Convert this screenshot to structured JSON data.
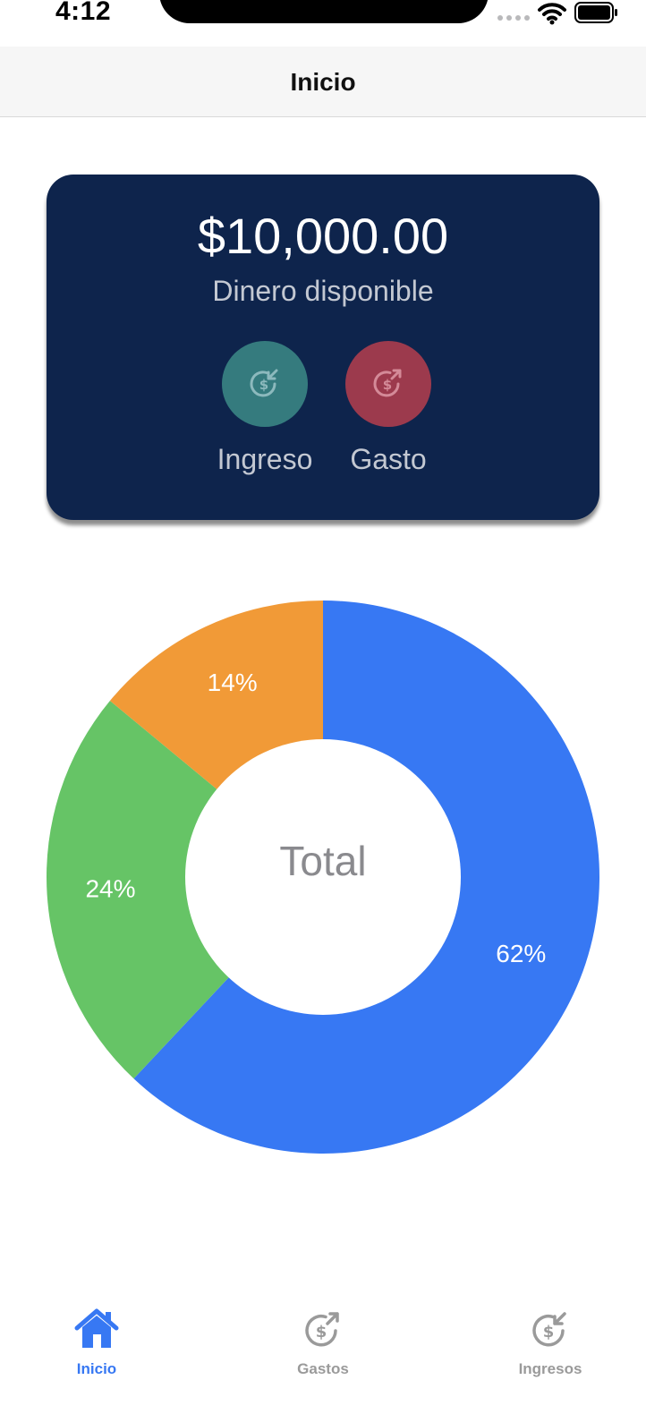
{
  "status_bar": {
    "time": "4:12"
  },
  "nav": {
    "title": "Inicio"
  },
  "balance": {
    "amount": "$10,000.00",
    "label": "Dinero disponible",
    "actions": [
      {
        "label": "Ingreso",
        "icon": "income-dollar-icon",
        "color": "#357b7e"
      },
      {
        "label": "Gasto",
        "icon": "expense-dollar-icon",
        "color": "#9c3a4d"
      }
    ]
  },
  "chart_data": {
    "type": "pie",
    "variant": "donut",
    "center_label": "Total",
    "slices": [
      {
        "label": "62%",
        "value": 62,
        "color": "#3778f3"
      },
      {
        "label": "24%",
        "value": 24,
        "color": "#66c466"
      },
      {
        "label": "14%",
        "value": 14,
        "color": "#f19a37"
      }
    ]
  },
  "tabs": [
    {
      "label": "Inicio",
      "icon": "home-icon",
      "active": true
    },
    {
      "label": "Gastos",
      "icon": "expense-dollar-icon",
      "active": false
    },
    {
      "label": "Ingresos",
      "icon": "income-dollar-icon",
      "active": false
    }
  ],
  "colors": {
    "card_background": "#0e244c",
    "accent": "#3778f3",
    "inactive_tab": "#9a9a9a"
  }
}
